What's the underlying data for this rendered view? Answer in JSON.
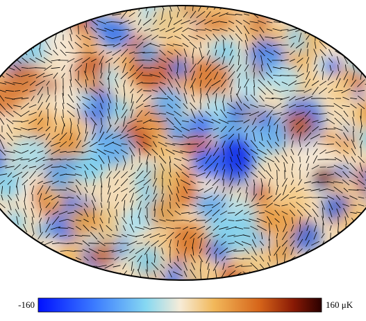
{
  "colorbar": {
    "min_label": "-160",
    "max_label": "160 μK"
  }
}
